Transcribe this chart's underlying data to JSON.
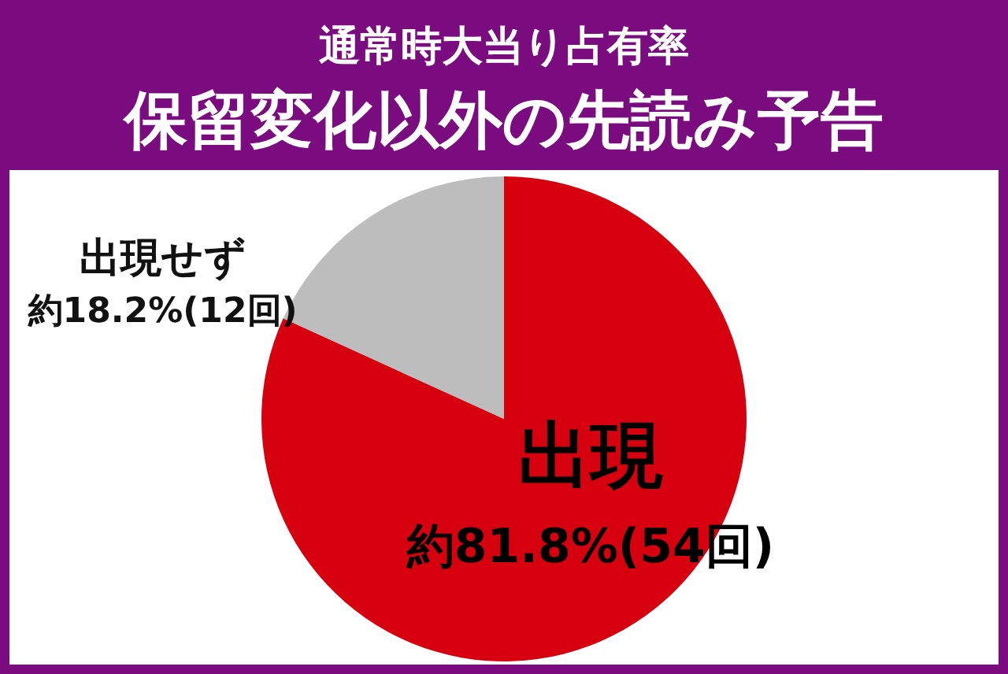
{
  "chart_data": {
    "type": "pie",
    "title": "通常時大当り占有率",
    "subtitle": "保留変化以外の先読み予告",
    "categories": [
      "出現",
      "出現せず"
    ],
    "values": [
      81.8,
      18.2
    ],
    "colors": [
      "#d7000f",
      "#bdbdbd"
    ],
    "value_labels": [
      "約81.8%(54回)",
      "約18.2%(12回)"
    ]
  }
}
